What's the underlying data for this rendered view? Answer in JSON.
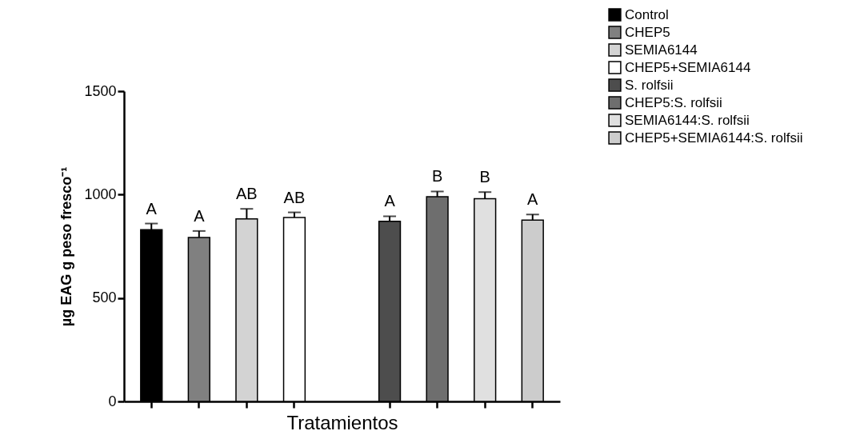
{
  "chart_data": {
    "type": "bar",
    "xlabel": "Tratamientos",
    "ylabel": "µg EAG g peso fresco⁻¹",
    "categories": [
      null,
      null,
      null,
      null,
      null,
      null,
      null,
      null,
      null
    ],
    "series": [
      {
        "name": "Control",
        "color": "#000000",
        "values": [
          830,
          null,
          null,
          null,
          null,
          null,
          null,
          null,
          null
        ],
        "errors": [
          30,
          null,
          null,
          null,
          null,
          null,
          null,
          null,
          null
        ]
      },
      {
        "name": "CHEP5",
        "color": "#808080",
        "values": [
          null,
          793,
          null,
          null,
          null,
          null,
          null,
          null,
          null
        ],
        "errors": [
          null,
          31,
          null,
          null,
          null,
          null,
          null,
          null,
          null
        ]
      },
      {
        "name": "SEMIA6144",
        "color": "#d3d3d3",
        "values": [
          null,
          null,
          882,
          null,
          null,
          null,
          null,
          null,
          null
        ],
        "errors": [
          null,
          null,
          49,
          null,
          null,
          null,
          null,
          null,
          null
        ]
      },
      {
        "name": "CHEP5+SEMIA6144",
        "color": "#ffffff",
        "values": [
          null,
          null,
          null,
          889,
          null,
          null,
          null,
          null,
          null
        ],
        "errors": [
          null,
          null,
          null,
          25,
          null,
          null,
          null,
          null,
          null
        ]
      },
      {
        "name": "S. rolfsii",
        "color": "#4d4d4d",
        "values": [
          null,
          null,
          null,
          null,
          null,
          871,
          null,
          null,
          null
        ],
        "errors": [
          null,
          null,
          null,
          null,
          null,
          24,
          null,
          null,
          null
        ]
      },
      {
        "name": "CHEP5:S. rolfsii",
        "color": "#6e6e6e",
        "values": [
          null,
          null,
          null,
          null,
          null,
          null,
          990,
          null,
          null
        ],
        "errors": [
          null,
          null,
          null,
          null,
          null,
          null,
          25,
          null,
          null
        ]
      },
      {
        "name": "SEMIA6144:S. rolfsii",
        "color": "#e0e0e0",
        "values": [
          null,
          null,
          null,
          null,
          null,
          null,
          null,
          980,
          null
        ],
        "errors": [
          null,
          null,
          null,
          null,
          null,
          null,
          null,
          32,
          null
        ]
      },
      {
        "name": "CHEP5+SEMIA6144:S. rolfsii",
        "color": "#cccccc",
        "values": [
          null,
          null,
          null,
          null,
          null,
          null,
          null,
          null,
          877
        ],
        "errors": [
          null,
          null,
          null,
          null,
          null,
          null,
          null,
          null,
          27
        ]
      }
    ],
    "annotations": [
      {
        "text": "A",
        "y": 860
      },
      {
        "text": "A",
        "y": 824
      },
      {
        "text": "AB",
        "y": 931
      },
      {
        "text": "AB",
        "y": 914
      },
      {
        "text": "A",
        "y": 895
      },
      {
        "text": "B",
        "y": 1015
      },
      {
        "text": "B",
        "y": 1012
      },
      {
        "text": "A",
        "y": 904
      }
    ],
    "ylim": [
      0,
      1500
    ],
    "yticks": [
      0,
      500,
      1000,
      1500
    ],
    "grid": false,
    "legend": "top right"
  }
}
